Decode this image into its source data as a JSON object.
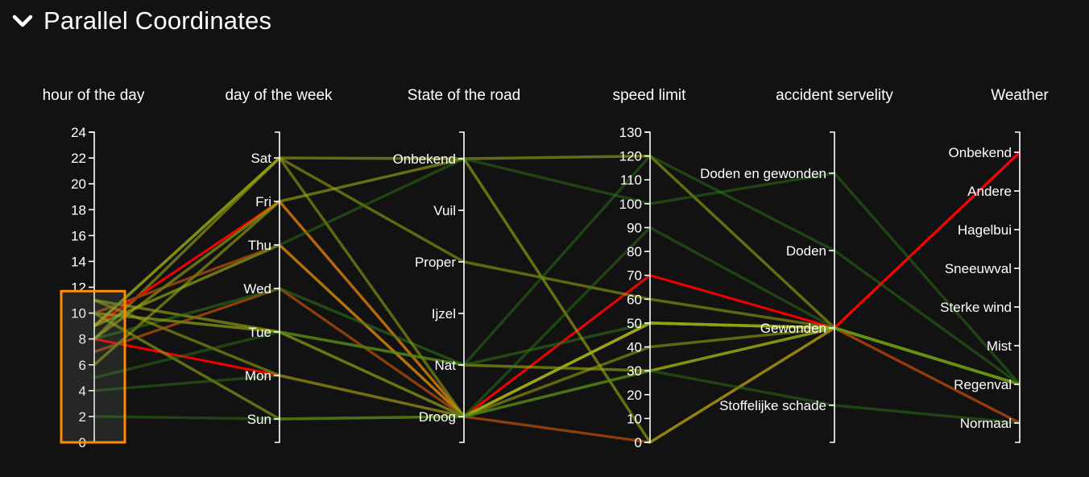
{
  "header": {
    "title": "Parallel Coordinates",
    "toggle_icon": "chevron-down-icon"
  },
  "colors": {
    "background": "#121212",
    "low": "#2f7a16",
    "mid": "#9aa812",
    "high": "#ff0000",
    "brush": "#ff8c00"
  },
  "chart_data": {
    "type": "parallel-coordinates",
    "dimensions": [
      {
        "key": "hour",
        "label": "hour of the day",
        "scale": "linear",
        "domain": [
          0,
          24
        ],
        "ticks": [
          0,
          2,
          4,
          6,
          8,
          10,
          12,
          14,
          16,
          18,
          20,
          22,
          24
        ],
        "tick_side": "left"
      },
      {
        "key": "day",
        "label": "day of the week",
        "scale": "ordinal",
        "categories": [
          "Sat",
          "Fri",
          "Thu",
          "Wed",
          "Tue",
          "Mon",
          "Sun"
        ],
        "tick_side": "left"
      },
      {
        "key": "road",
        "label": "State of the road",
        "scale": "ordinal",
        "categories": [
          "Onbekend",
          "Vuil",
          "Proper",
          "Ijzel",
          "Nat",
          "Droog"
        ],
        "tick_side": "left"
      },
      {
        "key": "speed",
        "label": "speed limit",
        "scale": "linear",
        "domain": [
          0,
          130
        ],
        "ticks": [
          0,
          10,
          20,
          30,
          40,
          50,
          60,
          70,
          80,
          90,
          100,
          110,
          120,
          130
        ],
        "tick_side": "left"
      },
      {
        "key": "severity",
        "label": "accident servelity",
        "scale": "ordinal",
        "categories": [
          "Doden en gewonden",
          "Doden",
          "Gewonden",
          "Stoffelijke schade"
        ],
        "tick_side": "left"
      },
      {
        "key": "weather",
        "label": "Weather",
        "scale": "ordinal",
        "categories": [
          "Onbekend",
          "Andere",
          "Hagelbui",
          "Sneeuwval",
          "Sterke wind",
          "Mist",
          "Regenval",
          "Normaal"
        ],
        "tick_side": "left"
      }
    ],
    "brush": {
      "dimension": "hour",
      "range": [
        0,
        11.7
      ]
    },
    "records": [
      {
        "hour": 8,
        "day": "Sat",
        "road": "Onbekend",
        "speed": 120,
        "severity": "Gewonden",
        "weather": "Regenval",
        "weight": 0.5
      },
      {
        "hour": 9,
        "day": "Fri",
        "road": "Droog",
        "speed": 50,
        "severity": "Gewonden",
        "weather": "Onbekend",
        "weight": 0.9
      },
      {
        "hour": 10,
        "day": "Thu",
        "road": "Droog",
        "speed": 70,
        "severity": "Gewonden",
        "weather": "Normaal",
        "weight": 0.95
      },
      {
        "hour": 7,
        "day": "Wed",
        "road": "Droog",
        "speed": 50,
        "severity": "Gewonden",
        "weather": "Normaal",
        "weight": 0.85
      },
      {
        "hour": 11,
        "day": "Tue",
        "road": "Nat",
        "speed": 30,
        "severity": "Gewonden",
        "weather": "Regenval",
        "weight": 0.55
      },
      {
        "hour": 8,
        "day": "Mon",
        "road": "Droog",
        "speed": 0,
        "severity": "Gewonden",
        "weather": "Onbekend",
        "weight": 0.8
      },
      {
        "hour": 10,
        "day": "Sun",
        "road": "Droog",
        "speed": 50,
        "severity": "Gewonden",
        "weather": "Regenval",
        "weight": 0.5
      },
      {
        "hour": 9,
        "day": "Sat",
        "road": "Proper",
        "speed": 60,
        "severity": "Gewonden",
        "weather": "Regenval",
        "weight": 0.45
      },
      {
        "hour": 6,
        "day": "Fri",
        "road": "Droog",
        "speed": 30,
        "severity": "Gewonden",
        "weather": "Regenval",
        "weight": 0.5
      },
      {
        "hour": 9,
        "day": "Thu",
        "road": "Droog",
        "speed": 50,
        "severity": "Gewonden",
        "weather": "Regenval",
        "weight": 0.6
      },
      {
        "hour": 8,
        "day": "Wed",
        "road": "Nat",
        "speed": 50,
        "severity": "Gewonden",
        "weather": "Regenval",
        "weight": 0.4
      },
      {
        "hour": 10,
        "day": "Tue",
        "road": "Droog",
        "speed": 50,
        "severity": "Gewonden",
        "weather": "Regenval",
        "weight": 0.6
      },
      {
        "hour": 11,
        "day": "Mon",
        "road": "Droog",
        "speed": 40,
        "severity": "Gewonden",
        "weather": "Regenval",
        "weight": 0.45
      },
      {
        "hour": 2,
        "day": "Sun",
        "road": "Droog",
        "speed": 0,
        "severity": "Gewonden",
        "weather": "Normaal",
        "weight": 0.3
      },
      {
        "hour": 9,
        "day": "Sat",
        "road": "Droog",
        "speed": 50,
        "severity": "Gewonden",
        "weather": "Regenval",
        "weight": 0.45
      },
      {
        "hour": 8,
        "day": "Fri",
        "road": "Onbekend",
        "speed": 0,
        "severity": "Gewonden",
        "weather": "Regenval",
        "weight": 0.55
      },
      {
        "hour": 10,
        "day": "Thu",
        "road": "Onbekend",
        "speed": 100,
        "severity": "Doden en gewonden",
        "weather": "Regenval",
        "weight": 0.3
      },
      {
        "hour": 7,
        "day": "Wed",
        "road": "Droog",
        "speed": 90,
        "severity": "Gewonden",
        "weather": "Regenval",
        "weight": 0.3
      },
      {
        "hour": 5,
        "day": "Tue",
        "road": "Nat",
        "speed": 120,
        "severity": "Doden",
        "weather": "Regenval",
        "weight": 0.3
      },
      {
        "hour": 4,
        "day": "Mon",
        "road": "Droog",
        "speed": 30,
        "severity": "Stoffelijke schade",
        "weather": "Normaal",
        "weight": 0.3
      }
    ]
  }
}
